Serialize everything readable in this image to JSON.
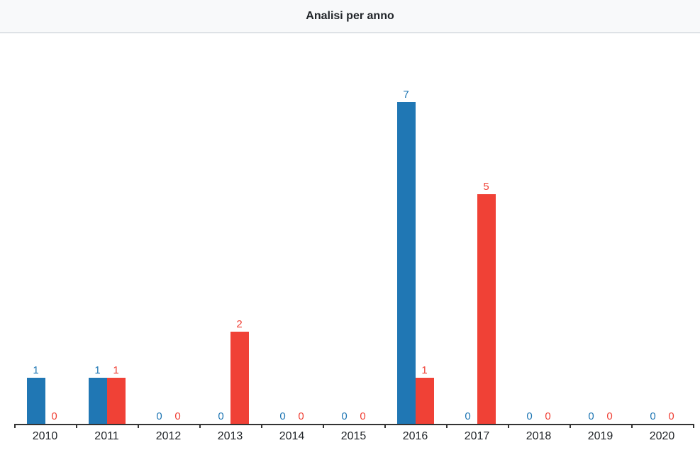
{
  "header": {
    "title": "Analisi per anno"
  },
  "colors": {
    "series_blue": "#2077b4",
    "series_red": "#f04136",
    "axis": "#333333",
    "header_bg": "#f8f9fa",
    "header_border": "#dee2e6",
    "axis_label_text": "#212529"
  },
  "chart_data": {
    "type": "bar",
    "title": "Analisi per anno",
    "categories": [
      "2010",
      "2011",
      "2012",
      "2013",
      "2014",
      "2015",
      "2016",
      "2017",
      "2018",
      "2019",
      "2020"
    ],
    "series": [
      {
        "name": "blue",
        "color": "#2077b4",
        "values": [
          1,
          1,
          0,
          0,
          0,
          0,
          7,
          0,
          0,
          0,
          0
        ]
      },
      {
        "name": "red",
        "color": "#f04136",
        "values": [
          0,
          1,
          0,
          2,
          0,
          0,
          1,
          5,
          0,
          0,
          0
        ]
      }
    ],
    "xlabel": "",
    "ylabel": "",
    "ylim": [
      0,
      8.5
    ],
    "grid": false,
    "legend": "none",
    "data_labels": true
  }
}
